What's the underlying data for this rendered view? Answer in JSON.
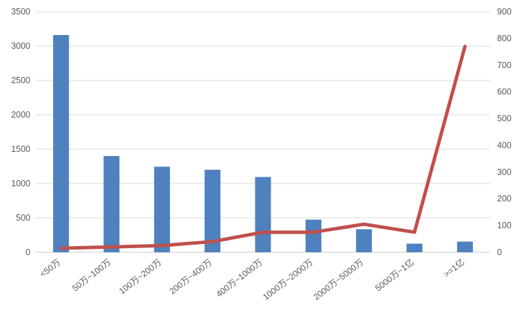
{
  "chart": {
    "title": "",
    "colors": {
      "background": "#ffffff",
      "bar": "#4E81BD",
      "line": "#C0504D",
      "gridline": "#D9D9D9",
      "axis_line": "#C8C8C8",
      "axis_text": "#595959"
    }
  },
  "chart_data": {
    "type": "combo-bar-line",
    "title": "",
    "legend": null,
    "grid": true,
    "categories": [
      "<50万",
      "50万~100万",
      "100万~200万",
      "200万~400万",
      "400万~1000万",
      "1000万~2000万",
      "2000万~5000万",
      "5000万~1亿",
      ">=1亿"
    ],
    "series": [
      {
        "name": "bar-series",
        "type": "bar",
        "axis": "left",
        "color": "#4E81BD",
        "values": [
          3160,
          1400,
          1245,
          1200,
          1095,
          475,
          335,
          125,
          155
        ]
      },
      {
        "name": "line-series",
        "type": "line",
        "axis": "right",
        "color": "#C0504D",
        "values": [
          15,
          20,
          25,
          40,
          75,
          75,
          105,
          75,
          770
        ]
      }
    ],
    "left_axis": {
      "min": 0,
      "max": 3500,
      "step": 500,
      "ticks": [
        "0",
        "500",
        "1000",
        "1500",
        "2000",
        "2500",
        "3000",
        "3500"
      ]
    },
    "right_axis": {
      "min": 0,
      "max": 900,
      "step": 100,
      "ticks": [
        "0",
        "100",
        "200",
        "300",
        "400",
        "500",
        "600",
        "700",
        "800",
        "900"
      ]
    }
  }
}
